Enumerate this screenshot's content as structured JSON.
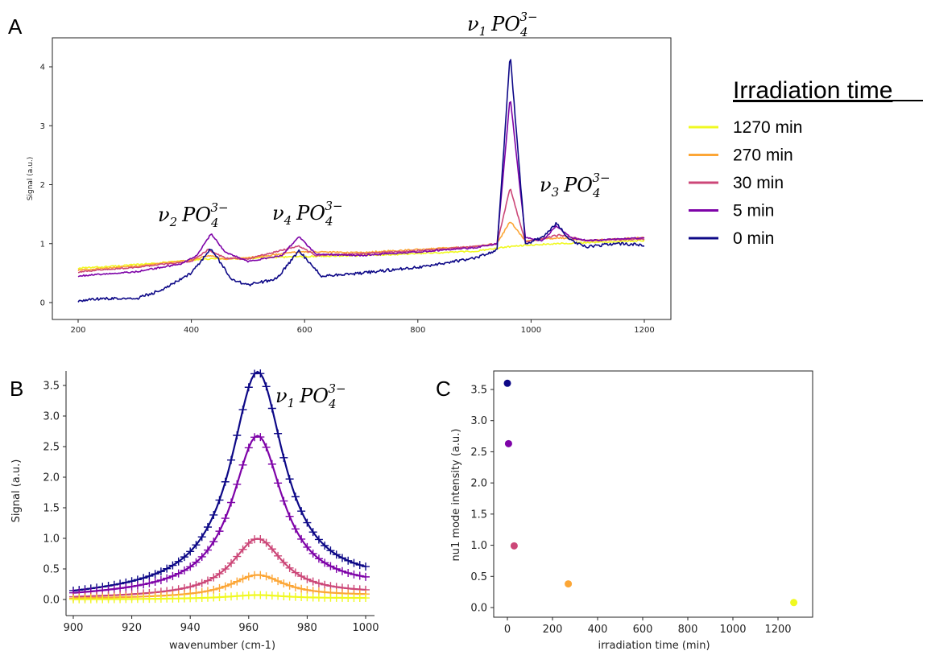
{
  "panels": {
    "a": "A",
    "b": "B",
    "c": "C"
  },
  "colors": {
    "1270": "#f0f921",
    "270": "#fca636",
    "30": "#cc4778",
    "5": "#7e03a8",
    "0": "#0d0887"
  },
  "legend": {
    "title": "Irradiation time",
    "items": [
      "1270 min",
      "270 min",
      "30 min",
      "5 min",
      "0 min"
    ]
  },
  "annotations": {
    "nu1": {
      "nu": "ν",
      "sub": "1",
      "ion": "PO",
      "ion_sub": "4",
      "charge": "3−"
    },
    "nu2": {
      "nu": "ν",
      "sub": "2",
      "ion": "PO",
      "ion_sub": "4",
      "charge": "3−"
    },
    "nu3": {
      "nu": "ν",
      "sub": "3",
      "ion": "PO",
      "ion_sub": "4",
      "charge": "3−"
    },
    "nu4": {
      "nu": "ν",
      "sub": "4",
      "ion": "PO",
      "ion_sub": "4",
      "charge": "3−"
    }
  },
  "chart_data": [
    {
      "panel": "A",
      "type": "line",
      "xlabel": "",
      "ylabel": "Signal (a.u.)",
      "xlim": [
        200,
        1200
      ],
      "ylim": [
        0,
        4.3
      ],
      "xticks": [
        200,
        400,
        600,
        800,
        1000,
        1200
      ],
      "yticks": [
        0,
        1,
        2,
        3,
        4
      ],
      "series": [
        {
          "name": "1270 min",
          "color": "#f0f921",
          "x": [
            200,
            300,
            400,
            430,
            500,
            590,
            700,
            800,
            900,
            963,
            1000,
            1050,
            1100,
            1200
          ],
          "y": [
            0.58,
            0.64,
            0.72,
            0.74,
            0.75,
            0.78,
            0.8,
            0.83,
            0.87,
            0.95,
            0.98,
            1.0,
            1.02,
            1.05
          ]
        },
        {
          "name": "270 min",
          "color": "#fca636",
          "x": [
            200,
            300,
            400,
            430,
            460,
            500,
            590,
            700,
            800,
            900,
            940,
            963,
            990,
            1050,
            1100,
            1200
          ],
          "y": [
            0.55,
            0.62,
            0.72,
            0.8,
            0.74,
            0.76,
            0.86,
            0.85,
            0.9,
            0.95,
            1.0,
            1.38,
            1.05,
            1.1,
            1.05,
            1.1
          ]
        },
        {
          "name": "30 min",
          "color": "#cc4778",
          "x": [
            200,
            300,
            400,
            430,
            460,
            500,
            590,
            620,
            700,
            800,
            900,
            940,
            963,
            990,
            1050,
            1100,
            1200
          ],
          "y": [
            0.52,
            0.6,
            0.7,
            0.9,
            0.75,
            0.74,
            0.96,
            0.8,
            0.83,
            0.88,
            0.95,
            1.0,
            1.95,
            1.02,
            1.15,
            1.05,
            1.08
          ]
        },
        {
          "name": "5 min",
          "color": "#7e03a8",
          "x": [
            200,
            300,
            380,
            410,
            435,
            460,
            500,
            560,
            590,
            620,
            700,
            800,
            900,
            940,
            963,
            990,
            1020,
            1045,
            1070,
            1100,
            1200
          ],
          "y": [
            0.45,
            0.52,
            0.65,
            0.8,
            1.17,
            0.85,
            0.7,
            0.8,
            1.12,
            0.82,
            0.8,
            0.86,
            0.93,
            1.0,
            3.5,
            1.1,
            1.05,
            1.3,
            1.1,
            1.05,
            1.1
          ]
        },
        {
          "name": "0 min",
          "color": "#0d0887",
          "x": [
            200,
            250,
            300,
            350,
            400,
            435,
            470,
            500,
            550,
            590,
            630,
            700,
            800,
            900,
            940,
            963,
            990,
            1020,
            1045,
            1070,
            1100,
            1150,
            1200
          ],
          "y": [
            0.03,
            0.07,
            0.06,
            0.22,
            0.5,
            0.92,
            0.4,
            0.3,
            0.4,
            0.88,
            0.45,
            0.5,
            0.6,
            0.75,
            0.9,
            4.22,
            1.0,
            1.1,
            1.35,
            1.05,
            0.95,
            1.0,
            0.98
          ]
        }
      ]
    },
    {
      "panel": "B",
      "type": "line",
      "xlabel": "wavenumber (cm-1)",
      "ylabel": "Signal (a.u.)",
      "xlim": [
        900,
        1000
      ],
      "ylim": [
        0,
        3.5
      ],
      "xticks": [
        900,
        920,
        940,
        960,
        980,
        1000
      ],
      "yticks": [
        0.0,
        0.5,
        1.0,
        1.5,
        2.0,
        2.5,
        3.0,
        3.5
      ],
      "model": "lorentzian",
      "center": 963,
      "series": [
        {
          "name": "0 min",
          "color": "#0d0887",
          "amplitude": 3.55,
          "hwhm": 11,
          "baseline_start": 0.04,
          "baseline_end": 0.25
        },
        {
          "name": "5 min",
          "color": "#7e03a8",
          "amplitude": 2.55,
          "hwhm": 10.5,
          "baseline_start": 0.04,
          "baseline_end": 0.18
        },
        {
          "name": "30 min",
          "color": "#cc4778",
          "amplitude": 0.93,
          "hwhm": 10.5,
          "baseline_start": 0.02,
          "baseline_end": 0.09
        },
        {
          "name": "270 min",
          "color": "#fca636",
          "amplitude": 0.36,
          "hwhm": 11,
          "baseline_start": 0.01,
          "baseline_end": 0.06
        },
        {
          "name": "1270 min",
          "color": "#f0f921",
          "amplitude": 0.06,
          "hwhm": 12,
          "baseline_start": 0.0,
          "baseline_end": 0.02
        }
      ]
    },
    {
      "panel": "C",
      "type": "scatter",
      "xlabel": "irradiation time (min)",
      "ylabel": "nu1 mode intensity (a.u.)",
      "xlim": [
        -60,
        1340
      ],
      "ylim": [
        -0.1,
        3.8
      ],
      "xticks": [
        0,
        200,
        400,
        600,
        800,
        1000,
        1200
      ],
      "yticks": [
        0.0,
        0.5,
        1.0,
        1.5,
        2.0,
        2.5,
        3.0,
        3.5
      ],
      "points": [
        {
          "x": 0,
          "y": 3.6,
          "color": "#0d0887"
        },
        {
          "x": 5,
          "y": 2.63,
          "color": "#7e03a8"
        },
        {
          "x": 30,
          "y": 0.99,
          "color": "#cc4778"
        },
        {
          "x": 270,
          "y": 0.38,
          "color": "#fca636"
        },
        {
          "x": 1270,
          "y": 0.08,
          "color": "#f0f921"
        }
      ]
    }
  ]
}
